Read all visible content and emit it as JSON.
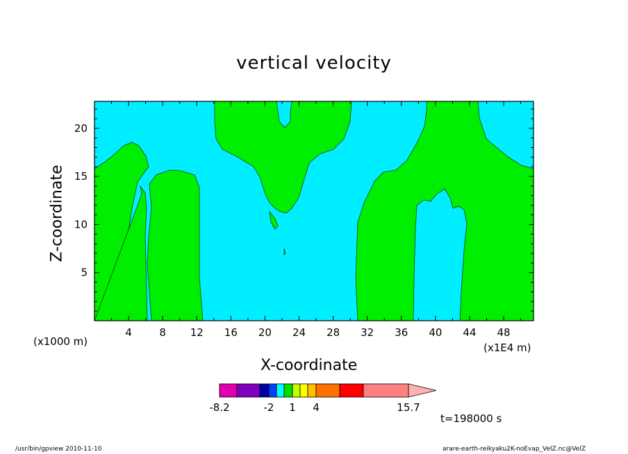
{
  "chart_data": {
    "type": "heatmap",
    "title": "vertical velocity",
    "xlabel": "X-coordinate",
    "ylabel": "Z-coordinate",
    "x_unit_left": "(x1000 m)",
    "x_unit_right": "(x1E4 m)",
    "xlim": [
      0,
      51.5
    ],
    "ylim": [
      0,
      22.8
    ],
    "x_ticks": [
      4,
      8,
      12,
      16,
      20,
      24,
      28,
      32,
      36,
      40,
      44,
      48
    ],
    "y_ticks": [
      5,
      10,
      15,
      20
    ],
    "grid": false,
    "colorbar": {
      "colors": [
        "#e000b0",
        "#8000c0",
        "#0000a0",
        "#0040ff",
        "#00a0ff",
        "#00ffff",
        "#00e000",
        "#c0ff00",
        "#ffff00",
        "#ffc000",
        "#ff7000",
        "#ff0000",
        "#ff8080",
        "#ffb0b0"
      ],
      "labels": [
        "-8.2",
        "-2",
        "1",
        "4",
        "15.7"
      ]
    },
    "time_label": "t=198000 s",
    "regions": [
      {
        "name": "positive",
        "color": "#00ee00"
      },
      {
        "name": "negative",
        "color": "#00eeff"
      }
    ]
  },
  "footer": {
    "left": "/usr/bin/gpview   2010-11-10",
    "right": "arare-earth-reikyaku2K-noEvap_VelZ.nc@VelZ"
  }
}
